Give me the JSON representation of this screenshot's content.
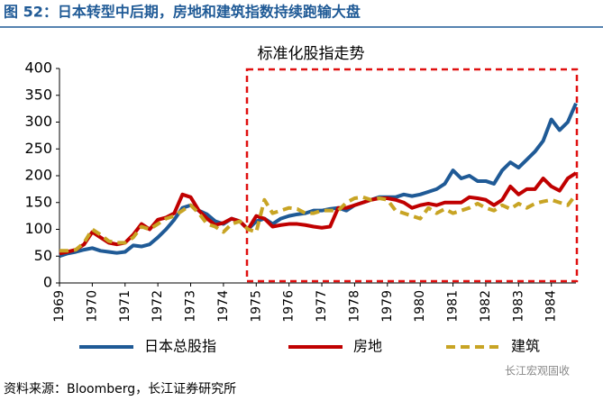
{
  "header": {
    "title": "图 52：日本转型中后期，房地和建筑指数持续跑输大盘"
  },
  "chart_data": {
    "type": "line",
    "title": "标准化股指走势",
    "x": [
      1969,
      1969.25,
      1969.5,
      1969.75,
      1970,
      1970.25,
      1970.5,
      1970.75,
      1971,
      1971.25,
      1971.5,
      1971.75,
      1972,
      1972.25,
      1972.5,
      1972.75,
      1973,
      1973.25,
      1973.5,
      1973.75,
      1974,
      1974.25,
      1974.5,
      1974.75,
      1975,
      1975.25,
      1975.5,
      1975.75,
      1976,
      1976.25,
      1976.5,
      1976.75,
      1977,
      1977.25,
      1977.5,
      1977.75,
      1978,
      1978.25,
      1978.5,
      1978.75,
      1979,
      1979.25,
      1979.5,
      1979.75,
      1980,
      1980.25,
      1980.5,
      1980.75,
      1981,
      1981.25,
      1981.5,
      1981.75,
      1982,
      1982.25,
      1982.5,
      1982.75,
      1983,
      1983.25,
      1983.5,
      1983.75,
      1984,
      1984.25,
      1984.5,
      1984.75
    ],
    "xlim": [
      1969,
      1984.75
    ],
    "xticks": [
      1969,
      1970,
      1971,
      1972,
      1973,
      1974,
      1975,
      1976,
      1977,
      1978,
      1979,
      1980,
      1981,
      1982,
      1983,
      1984
    ],
    "ylim": [
      0,
      400
    ],
    "yticks": [
      0,
      50,
      100,
      150,
      200,
      250,
      300,
      350,
      400
    ],
    "series": [
      {
        "name": "日本总股指",
        "color": "#1f5a96",
        "dash": false,
        "values": [
          50,
          55,
          58,
          62,
          65,
          60,
          58,
          56,
          58,
          70,
          68,
          72,
          85,
          100,
          118,
          140,
          145,
          135,
          128,
          115,
          110,
          120,
          115,
          100,
          115,
          120,
          110,
          120,
          125,
          128,
          130,
          135,
          135,
          138,
          140,
          135,
          145,
          150,
          155,
          160,
          160,
          160,
          165,
          162,
          165,
          170,
          175,
          185,
          210,
          195,
          200,
          190,
          190,
          185,
          210,
          225,
          215,
          230,
          245,
          265,
          305,
          285,
          300,
          335
        ]
      },
      {
        "name": "房地",
        "color": "#c00000",
        "dash": false,
        "values": [
          55,
          58,
          62,
          72,
          95,
          85,
          75,
          72,
          75,
          90,
          110,
          100,
          118,
          122,
          130,
          165,
          160,
          135,
          120,
          108,
          112,
          120,
          115,
          100,
          125,
          120,
          105,
          108,
          110,
          110,
          108,
          105,
          103,
          105,
          140,
          140,
          145,
          150,
          155,
          158,
          158,
          155,
          150,
          140,
          145,
          148,
          145,
          150,
          150,
          150,
          160,
          158,
          155,
          145,
          155,
          180,
          165,
          175,
          175,
          195,
          180,
          172,
          195,
          205
        ]
      },
      {
        "name": "建筑",
        "color": "#c8a424",
        "dash": true,
        "values": [
          60,
          60,
          62,
          75,
          100,
          90,
          78,
          75,
          75,
          85,
          105,
          100,
          110,
          120,
          125,
          135,
          145,
          130,
          110,
          105,
          95,
          110,
          115,
          100,
          95,
          155,
          130,
          135,
          140,
          138,
          130,
          130,
          135,
          135,
          135,
          150,
          158,
          160,
          155,
          158,
          155,
          135,
          130,
          125,
          120,
          140,
          130,
          138,
          130,
          135,
          140,
          148,
          140,
          135,
          145,
          138,
          148,
          140,
          148,
          152,
          155,
          150,
          145,
          165
        ]
      }
    ]
  },
  "source": "资料来源：Bloomberg，长江证券研究所",
  "watermark": "长江宏观固收"
}
